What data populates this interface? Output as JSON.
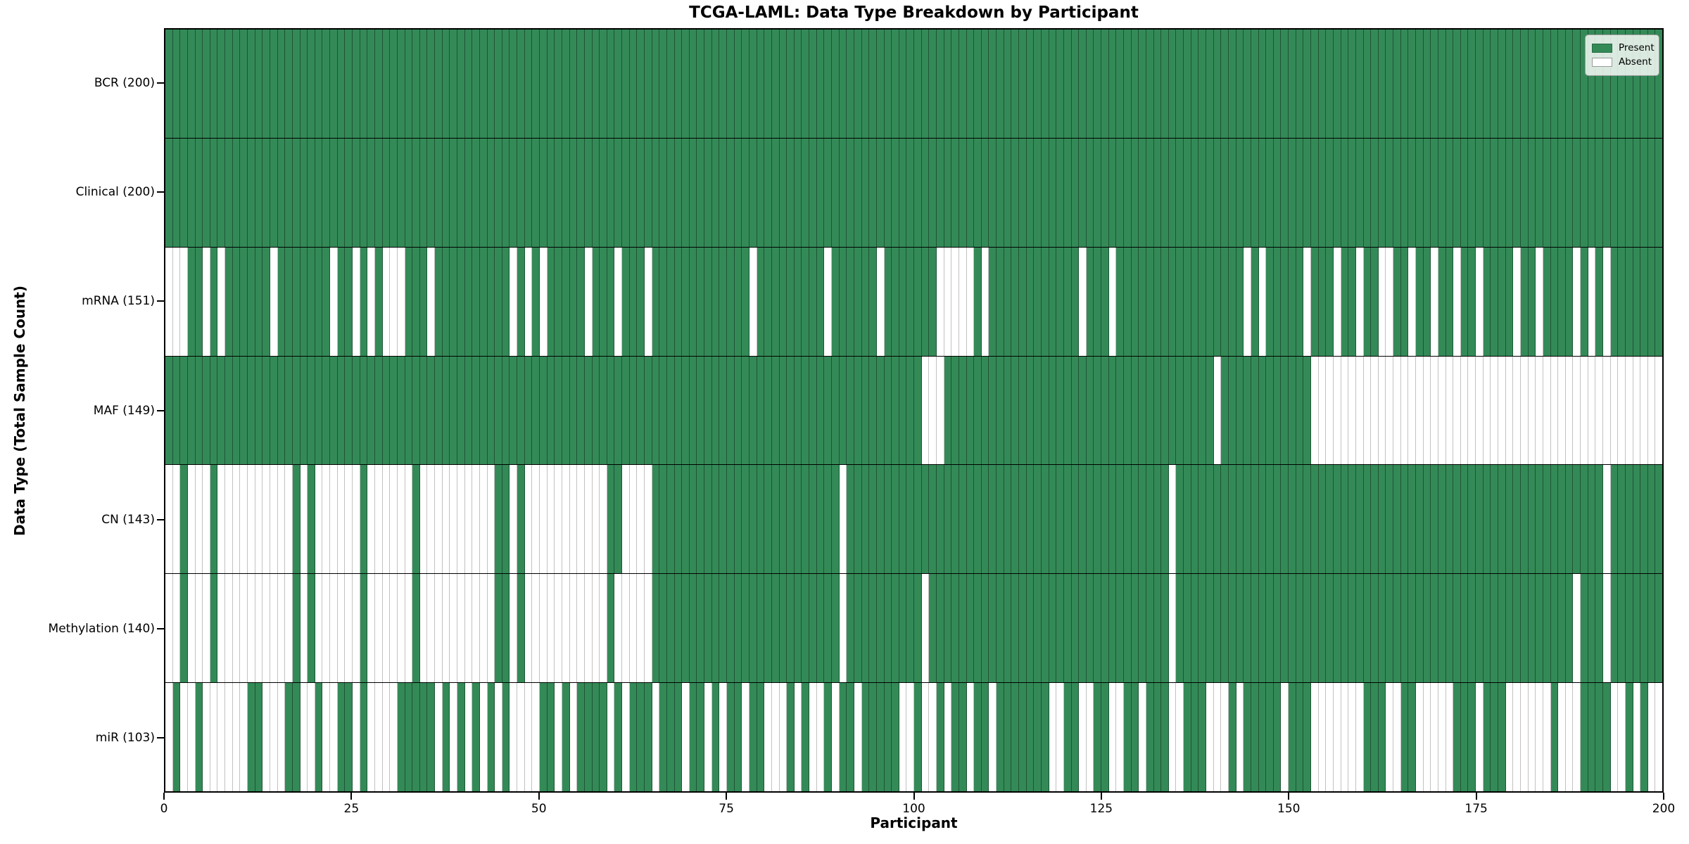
{
  "colors": {
    "present": "#338a57",
    "present_edge": "#1e5435",
    "absent": "#ffffff",
    "absent_edge": "#c2c2c2",
    "axis": "#000000"
  },
  "chart_data": {
    "type": "heatmap",
    "title": "TCGA-LAML: Data Type Breakdown by Participant",
    "xlabel": "Participant",
    "ylabel": "Data Type (Total Sample Count)",
    "x_range": [
      0,
      200
    ],
    "n_participants": 200,
    "x_ticks": [
      0,
      25,
      50,
      75,
      100,
      125,
      150,
      175,
      200
    ],
    "grid": false,
    "legend_position": "upper right",
    "legend": [
      "Present",
      "Absent"
    ],
    "cell_encoding": "pattern strings: 1 = Present (green), 0 = Absent (white), index = participant 0..199",
    "rows": [
      {
        "label": "BCR (200)",
        "data_type": "BCR",
        "present_count": 200,
        "pattern": "11111111111111111111111111111111111111111111111111111111111111111111111111111111111111111111111111111111111111111111111111111111111111111111111111111111111111111111111111111111111111111111111111111111"
      },
      {
        "label": "Clinical (200)",
        "data_type": "Clinical",
        "present_count": 200,
        "pattern": "11111111111111111111111111111111111111111111111111111111111111111111111111111111111111111111111111111111111111111111111111111111111111111111111111111111111111111111111111111111111111111111111111111111"
      },
      {
        "label": "mRNA (151)",
        "data_type": "mRNA",
        "present_count": 151,
        "pattern": "00011010111111011111110110101000111011111111110101011111011101110111111111111101111111110111111011111110000010111111111111011101111111111111111101011111011101101100110110110110111101101111010101OX"
      },
      {
        "label": "MAF (149)",
        "data_type": "MAF",
        "present_count": 149,
        "pattern": "11111111111111111111111111111111111111111111111111111111111111111111111111111111111111111111111111111000111111111111111111111111111111111111011111111111100000000000000000000000000000000000000000000000"
      },
      {
        "label": "CN (143)",
        "data_type": "CN",
        "present_count": 143,
        "pattern": "00100010000000000101000000100000010000000000110100000000000110000111111111111111111111111101111111111111111111111111111111111111111111011111111111111111111111111111111111111111111111111111111101111111"
      },
      {
        "label": "Methylation (140)",
        "data_type": "Methylation",
        "present_count": 140,
        "pattern": "00100010000000000101000000100000010000000000110100000000000100000111111111111111111111111101111111111011111111111111111111111111111111011111111111111111111111111111111111111111111111111111011101111111"
      },
      {
        "label": "miR (103)",
        "data_type": "miR",
        "present_count": 103,
        "pattern": "01001000000110001100100110100001111101010101010000110101111010111011101101011011000101001011011111001001011011011111110011001100110111001110001011111011100000001110011000001110111000000100011110010100"
      }
    ]
  }
}
